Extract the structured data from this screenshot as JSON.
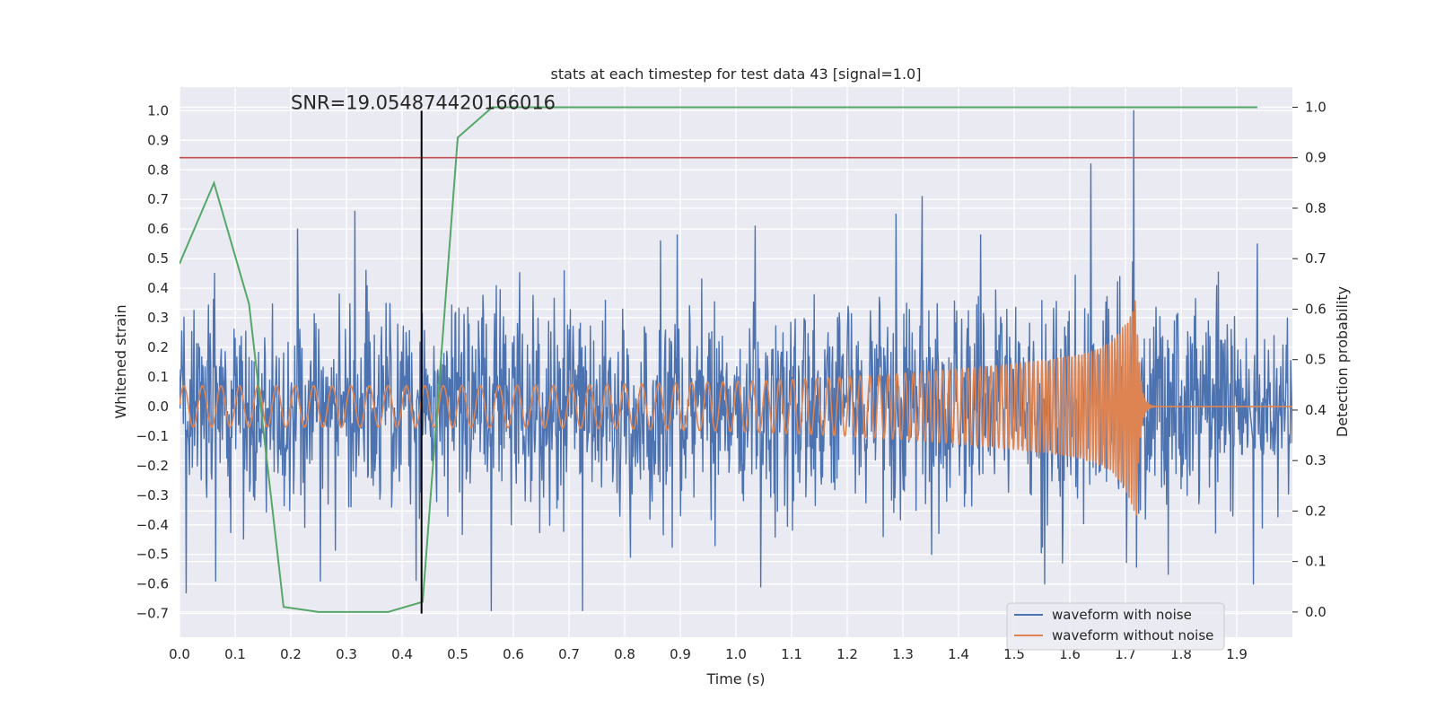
{
  "chart_data": {
    "type": "line",
    "title": "stats at each timestep for test data 43 [signal=1.0]",
    "xlabel": "Time (s)",
    "ylabel": "Whitened strain",
    "ylabel_right": "Detection probability",
    "xlim": [
      0.0,
      2.0
    ],
    "ylim": [
      -0.78,
      1.08
    ],
    "ylim_right": [
      -0.05,
      1.04
    ],
    "grid": true,
    "xticks": [
      0.0,
      0.1,
      0.2,
      0.3,
      0.4,
      0.5,
      0.6,
      0.7,
      0.8,
      0.9,
      1.0,
      1.1,
      1.2,
      1.3,
      1.4,
      1.5,
      1.6,
      1.7,
      1.8,
      1.9
    ],
    "xtick_labels": [
      "0.0",
      "0.1",
      "0.2",
      "0.3",
      "0.4",
      "0.5",
      "0.6",
      "0.7",
      "0.8",
      "0.9",
      "1.0",
      "1.1",
      "1.2",
      "1.3",
      "1.4",
      "1.5",
      "1.6",
      "1.7",
      "1.8",
      "1.9"
    ],
    "yticks": [
      -0.7,
      -0.6,
      -0.5,
      -0.4,
      -0.3,
      -0.2,
      -0.1,
      0.0,
      0.1,
      0.2,
      0.3,
      0.4,
      0.5,
      0.6,
      0.7,
      0.8,
      0.9,
      1.0
    ],
    "ytick_labels": [
      "−0.7",
      "−0.6",
      "−0.5",
      "−0.4",
      "−0.3",
      "−0.2",
      "−0.1",
      "0.0",
      "0.1",
      "0.2",
      "0.3",
      "0.4",
      "0.5",
      "0.6",
      "0.7",
      "0.8",
      "0.9",
      "1.0"
    ],
    "yticks_right": [
      0.0,
      0.1,
      0.2,
      0.3,
      0.4,
      0.5,
      0.6,
      0.7,
      0.8,
      0.9,
      1.0
    ],
    "ytick_labels_right": [
      "0.0",
      "0.1",
      "0.2",
      "0.3",
      "0.4",
      "0.5",
      "0.6",
      "0.7",
      "0.8",
      "0.9",
      "1.0"
    ],
    "annotation": {
      "text": "SNR=19.054874420166016",
      "x": 0.2,
      "y": 1.0
    },
    "vertical_line": {
      "x": 0.435,
      "y_from": -0.7,
      "y_to": 1.0,
      "color": "#000000"
    },
    "threshold_line": {
      "axis": "right",
      "y": 0.9,
      "color": "#c44e52"
    },
    "legend": {
      "location": "lower-right",
      "entries": [
        "waveform with noise",
        "waveform without noise"
      ]
    },
    "series": [
      {
        "name": "waveform with noise",
        "axis": "left",
        "color": "#4c72b0",
        "kind": "noise",
        "t_start": 0.0,
        "t_end": 2.0,
        "samples": 2000,
        "std": 0.17,
        "seed": 43,
        "extremes": [
          {
            "t": 0.063,
            "y": 0.45
          },
          {
            "t": 0.012,
            "y": -0.63
          },
          {
            "t": 0.065,
            "y": -0.59
          },
          {
            "t": 0.212,
            "y": 0.6
          },
          {
            "t": 0.253,
            "y": -0.59
          },
          {
            "t": 0.315,
            "y": 0.66
          },
          {
            "t": 0.56,
            "y": -0.69
          },
          {
            "t": 0.724,
            "y": -0.69
          },
          {
            "t": 0.864,
            "y": 0.56
          },
          {
            "t": 1.035,
            "y": 0.61
          },
          {
            "t": 1.045,
            "y": -0.61
          },
          {
            "t": 1.288,
            "y": 0.65
          },
          {
            "t": 1.335,
            "y": 0.71
          },
          {
            "t": 1.555,
            "y": -0.6
          },
          {
            "t": 1.638,
            "y": 0.82
          },
          {
            "t": 1.715,
            "y": 1.0
          },
          {
            "t": 1.93,
            "y": -0.6
          }
        ]
      },
      {
        "name": "waveform without noise",
        "axis": "left",
        "color": "#dd8452",
        "kind": "chirp",
        "t_start": 0.0,
        "t_end": 2.0,
        "samples": 4000,
        "t_merger": 1.72,
        "f_start": 30,
        "f_merger": 230,
        "amp_start": 0.07,
        "amp_before_merger": 0.2,
        "amp_peak": 0.38,
        "ringdown_tau": 0.006,
        "offset_after_merger": 0.0
      },
      {
        "name": "detection probability",
        "axis": "right",
        "color": "#55a868",
        "kind": "points",
        "x": [
          0.0,
          0.062,
          0.125,
          0.187,
          0.25,
          0.312,
          0.375,
          0.437,
          0.5,
          0.562,
          0.625,
          0.687,
          0.75,
          0.812,
          0.875,
          0.937,
          1.0,
          1.062,
          1.125,
          1.187,
          1.25,
          1.312,
          1.375,
          1.437,
          1.5,
          1.562,
          1.625,
          1.687,
          1.75,
          1.812,
          1.875,
          1.937
        ],
        "y": [
          0.69,
          0.85,
          0.61,
          0.01,
          0.0,
          0.0,
          0.0,
          0.02,
          0.94,
          1.0,
          1.0,
          1.0,
          1.0,
          1.0,
          1.0,
          1.0,
          1.0,
          1.0,
          1.0,
          1.0,
          1.0,
          1.0,
          1.0,
          1.0,
          1.0,
          1.0,
          1.0,
          1.0,
          1.0,
          1.0,
          1.0,
          1.0
        ]
      }
    ]
  }
}
